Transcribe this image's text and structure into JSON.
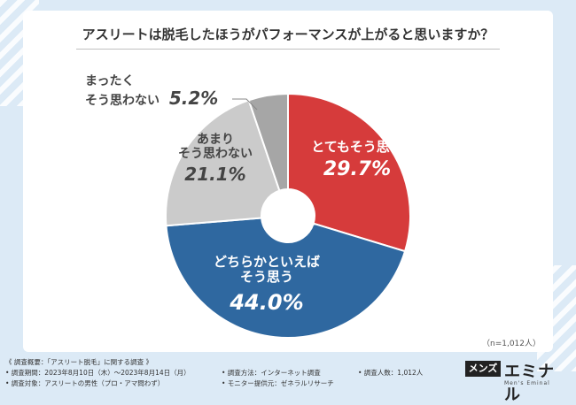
{
  "title": "アスリートは脱毛したほうがパフォーマンスが上がると思いますか？",
  "sample_size": "（n=1,012人）",
  "footer": {
    "heading": "《 調査概要：「アスリート脱毛」に関する調査 》",
    "period": "• 調査期間：2023年8月10日（木）〜2023年8月14日（月）",
    "target": "• 調査対象：アスリートの男性（プロ・アマ問わず）",
    "method": "• 調査方法：インターネット調査",
    "provider": "• モニター提供元：ゼネラルリサーチ",
    "count": "• 調査人数：1,012人"
  },
  "logo": {
    "box": "メンズ",
    "name": "エミナル",
    "sub": "Men's Eminal"
  },
  "labels": {
    "very": {
      "line1": "とてもそう思う",
      "pct": "29.7%"
    },
    "some": {
      "line1": "どちらかといえば",
      "line2": "そう思う",
      "pct": "44.0%"
    },
    "not": {
      "line1": "あまり",
      "line2": "そう思わない",
      "pct": "21.1%"
    },
    "never": {
      "line1": "まったく",
      "line2": "そう思わない",
      "pct": "5.2%"
    }
  },
  "chart_data": {
    "type": "pie",
    "donut": true,
    "title": "アスリートは脱毛したほうがパフォーマンスが上がると思いますか？",
    "categories": [
      "とてもそう思う",
      "どちらかといえばそう思う",
      "あまりそう思わない",
      "まったくそう思わない"
    ],
    "values": [
      29.7,
      44.0,
      21.1,
      5.2
    ],
    "colors": [
      "#d63b3b",
      "#2f68a0",
      "#cbcbcb",
      "#a6a6a6"
    ],
    "unit": "%"
  }
}
